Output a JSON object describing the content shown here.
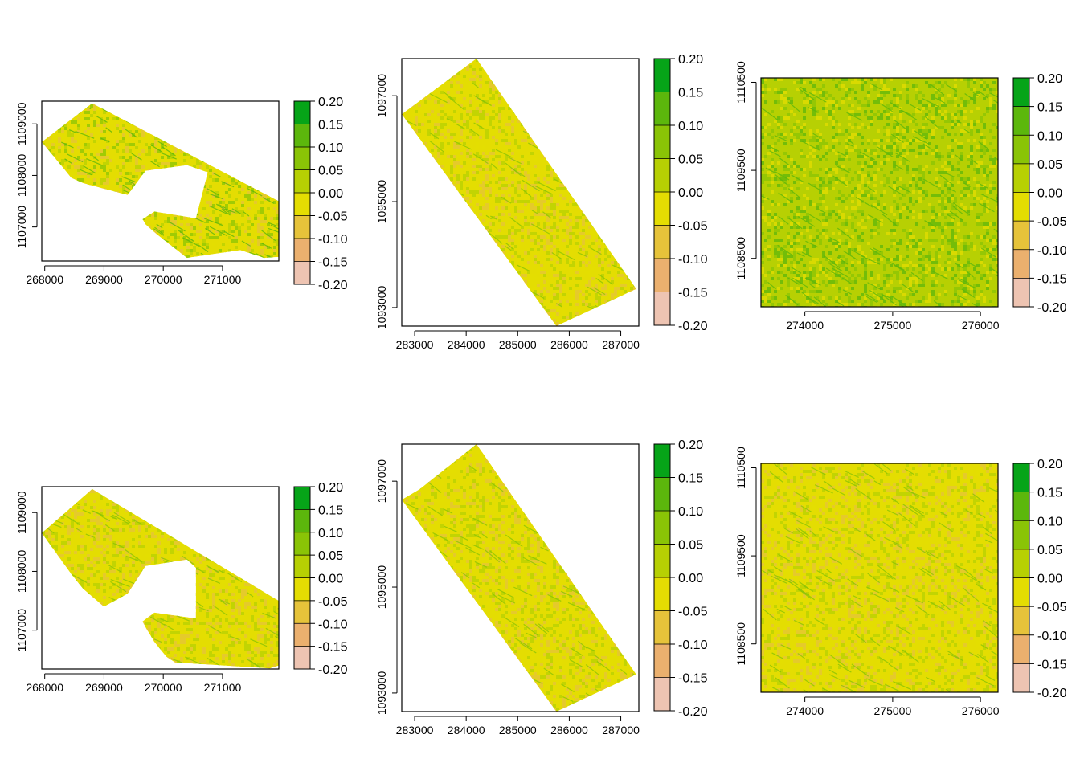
{
  "figure": {
    "panel_grid": "2 rows x 3 columns",
    "color_scale": {
      "breaks": [
        -0.2,
        -0.15,
        -0.1,
        -0.05,
        0.0,
        0.05,
        0.1,
        0.15,
        0.2
      ],
      "labels": [
        "-0.20",
        "-0.15",
        "-0.10",
        "-0.05",
        "0.00",
        "0.05",
        "0.10",
        "0.15",
        "0.20"
      ],
      "colors": [
        "#f2f2f2",
        "#eec4b2",
        "#ebb06e",
        "#e6c33a",
        "#e4dd02",
        "#b7d003",
        "#8ac406",
        "#5cb70c",
        "#06a418"
      ]
    }
  },
  "chart_data": [
    {
      "type": "heatmap",
      "title": "",
      "xlabel": "",
      "ylabel": "",
      "xlim": [
        267950,
        271950
      ],
      "ylim": [
        1106340,
        1109440
      ],
      "xticks": [
        268000,
        269000,
        270000,
        271000
      ],
      "yticks": [
        1107000,
        1108000,
        1109000
      ],
      "legend": "right",
      "value_range": [
        -0.2,
        0.2
      ],
      "footprint": [
        [
          268800,
          1109400
        ],
        [
          271950,
          1107500
        ],
        [
          271950,
          1106420
        ],
        [
          271700,
          1106400
        ],
        [
          271300,
          1106550
        ],
        [
          270400,
          1106400
        ],
        [
          269900,
          1106850
        ],
        [
          269700,
          1107050
        ],
        [
          269650,
          1107150
        ],
        [
          269850,
          1107300
        ],
        [
          270550,
          1107170
        ],
        [
          270750,
          1108060
        ],
        [
          270400,
          1108200
        ],
        [
          269700,
          1108090
        ],
        [
          269400,
          1107620
        ],
        [
          268650,
          1107850
        ],
        [
          268450,
          1107950
        ],
        [
          267950,
          1108650
        ]
      ],
      "dominant_values": [
        0.0,
        0.05,
        -0.05,
        0.1
      ],
      "stripe_direction": "parallel to NE edge",
      "stripe_value": 0.12
    },
    {
      "type": "heatmap",
      "title": "",
      "xlabel": "",
      "ylabel": "",
      "xlim": [
        282750,
        287350
      ],
      "ylim": [
        1092650,
        1097700
      ],
      "xticks": [
        283000,
        284000,
        285000,
        286000,
        287000
      ],
      "yticks": [
        1093000,
        1095000,
        1097000
      ],
      "legend": "right",
      "value_range": [
        -0.2,
        0.2
      ],
      "footprint": [
        [
          284200,
          1097700
        ],
        [
          287300,
          1093350
        ],
        [
          285750,
          1092650
        ],
        [
          282750,
          1096650
        ]
      ],
      "dominant_values": [
        0.0,
        0.05,
        -0.05
      ],
      "stripe_direction": "diagonal",
      "stripe_value": 0.1
    },
    {
      "type": "heatmap",
      "title": "",
      "xlabel": "",
      "ylabel": "",
      "xlim": [
        273500,
        276200
      ],
      "ylim": [
        1107950,
        1110550
      ],
      "xticks": [
        274000,
        275000,
        276000
      ],
      "yticks": [
        1108500,
        1109500,
        1110500
      ],
      "legend": "right",
      "value_range": [
        -0.2,
        0.2
      ],
      "footprint": [
        [
          273500,
          1110550
        ],
        [
          276200,
          1110550
        ],
        [
          276200,
          1107950
        ],
        [
          273500,
          1107950
        ]
      ],
      "dominant_values": [
        0.05,
        0.1,
        0.0,
        0.15
      ],
      "stripe_direction": "diagonal",
      "stripe_value": 0.15
    },
    {
      "type": "heatmap",
      "title": "",
      "xlabel": "",
      "ylabel": "",
      "xlim": [
        267950,
        271950
      ],
      "ylim": [
        1106340,
        1109440
      ],
      "xticks": [
        268000,
        269000,
        270000,
        271000
      ],
      "yticks": [
        1107000,
        1108000,
        1109000
      ],
      "legend": "right",
      "value_range": [
        -0.2,
        0.2
      ],
      "footprint": [
        [
          268800,
          1109400
        ],
        [
          271950,
          1107500
        ],
        [
          271950,
          1106400
        ],
        [
          271800,
          1106350
        ],
        [
          270200,
          1106450
        ],
        [
          270050,
          1106550
        ],
        [
          269850,
          1106800
        ],
        [
          269700,
          1107050
        ],
        [
          269650,
          1107150
        ],
        [
          269850,
          1107300
        ],
        [
          270550,
          1107200
        ],
        [
          270550,
          1108060
        ],
        [
          270400,
          1108200
        ],
        [
          269700,
          1108090
        ],
        [
          269400,
          1107620
        ],
        [
          269000,
          1107400
        ],
        [
          268650,
          1107700
        ],
        [
          268450,
          1107950
        ],
        [
          267950,
          1108650
        ]
      ],
      "dominant_values": [
        0.0,
        0.05,
        -0.05
      ],
      "stripe_direction": "parallel to NE edge",
      "stripe_value": 0.08
    },
    {
      "type": "heatmap",
      "title": "",
      "xlabel": "",
      "ylabel": "",
      "xlim": [
        282750,
        287350
      ],
      "ylim": [
        1092650,
        1097700
      ],
      "xticks": [
        283000,
        284000,
        285000,
        286000,
        287000
      ],
      "yticks": [
        1093000,
        1095000,
        1097000
      ],
      "legend": "right",
      "value_range": [
        -0.2,
        0.2
      ],
      "footprint": [
        [
          284200,
          1097700
        ],
        [
          287300,
          1093350
        ],
        [
          285750,
          1092650
        ],
        [
          282750,
          1096650
        ],
        [
          283100,
          1096850
        ]
      ],
      "dominant_values": [
        0.0,
        -0.05,
        0.05
      ],
      "stripe_direction": "diagonal",
      "stripe_value": 0.08
    },
    {
      "type": "heatmap",
      "title": "",
      "xlabel": "",
      "ylabel": "",
      "xlim": [
        273500,
        276200
      ],
      "ylim": [
        1107950,
        1110550
      ],
      "xticks": [
        274000,
        275000,
        276000
      ],
      "yticks": [
        1108500,
        1109500,
        1110500
      ],
      "legend": "right",
      "value_range": [
        -0.2,
        0.2
      ],
      "footprint": [
        [
          273500,
          1110550
        ],
        [
          276200,
          1110550
        ],
        [
          276200,
          1107950
        ],
        [
          273500,
          1107950
        ]
      ],
      "dominant_values": [
        0.0,
        0.05,
        -0.05
      ],
      "stripe_direction": "diagonal",
      "stripe_value": 0.07
    }
  ]
}
